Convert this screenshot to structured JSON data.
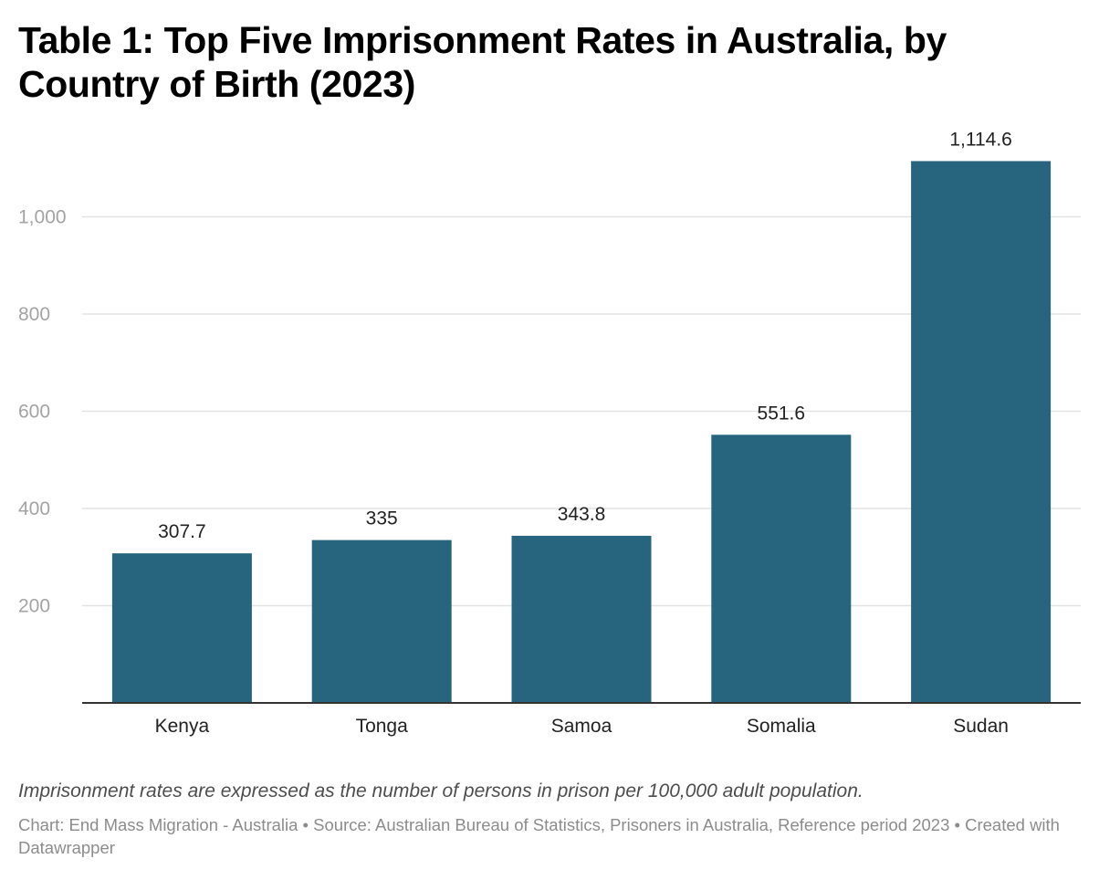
{
  "chart_data": {
    "type": "bar",
    "title": "Table 1: Top Five Imprisonment Rates in Australia, by Country of Birth (2023)",
    "categories": [
      "Kenya",
      "Tonga",
      "Samoa",
      "Somalia",
      "Sudan"
    ],
    "values": [
      307.7,
      335,
      343.8,
      551.6,
      1114.6
    ],
    "value_labels": [
      "307.7",
      "335",
      "343.8",
      "551.6",
      "1,114.6"
    ],
    "xlabel": "",
    "ylabel": "",
    "ylim": [
      0,
      1180
    ],
    "yticks": [
      200,
      400,
      600,
      800,
      1000
    ],
    "ytick_labels": [
      "200",
      "400",
      "600",
      "800",
      "1,000"
    ],
    "grid": true,
    "bar_color": "#27657f",
    "note": "Imprisonment rates are expressed as the number of persons in prison per 100,000 adult population.",
    "footer": "Chart: End Mass Migration - Australia • Source: Australian Bureau of Statistics, Prisoners in Australia, Reference period 2023 • Created with Datawrapper"
  }
}
